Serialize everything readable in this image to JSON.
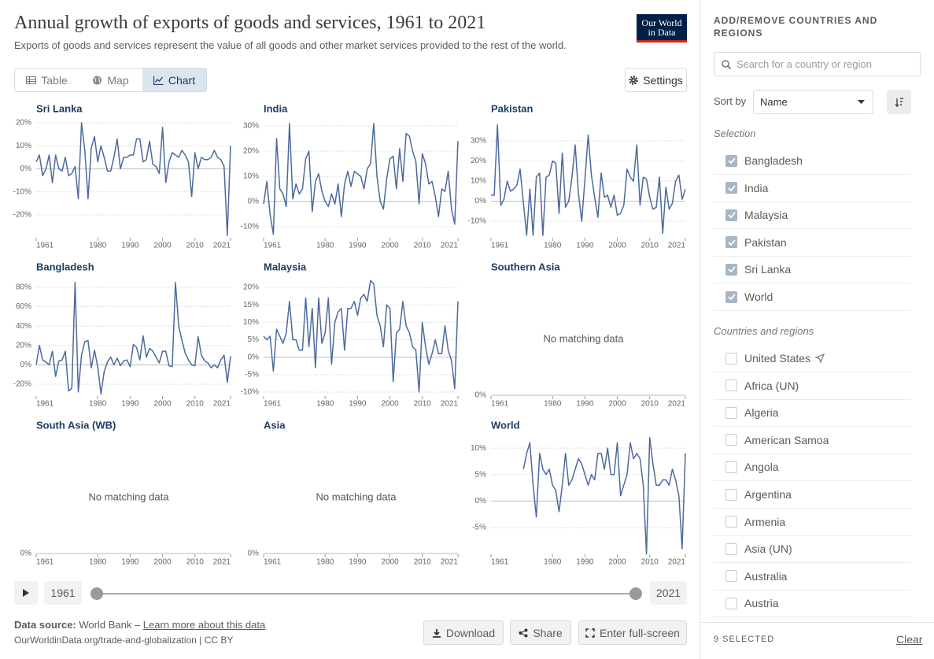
{
  "header": {
    "title": "Annual growth of exports of goods and services, 1961 to 2021",
    "subtitle": "Exports of goods and services represent the value of all goods and other market services provided to the rest of the world.",
    "logo": [
      "Our World",
      "in Data"
    ]
  },
  "tabs": [
    "Table",
    "Map",
    "Chart"
  ],
  "active_tab": 2,
  "settings": "Settings",
  "chart_data": [
    {
      "type": "line",
      "title": "Sri Lanka",
      "color": "#4c6a9c",
      "xlim": [
        1961,
        2021
      ],
      "xticks": [
        1961,
        1980,
        1990,
        2000,
        2010,
        2021
      ],
      "ylim": [
        -29.6,
        21
      ],
      "yticks": [
        {
          "value": 20,
          "label": "20%"
        },
        {
          "value": 10,
          "label": "10%"
        },
        {
          "value": 0,
          "label": "0%"
        },
        {
          "value": -10,
          "label": "-10%"
        },
        {
          "value": -20,
          "label": "-20%"
        }
      ],
      "x": [
        1961,
        1962,
        1963,
        1964,
        1965,
        1966,
        1967,
        1968,
        1969,
        1970,
        1971,
        1972,
        1973,
        1974,
        1975,
        1976,
        1977,
        1978,
        1979,
        1980,
        1981,
        1982,
        1983,
        1984,
        1985,
        1986,
        1987,
        1988,
        1989,
        1990,
        1991,
        1992,
        1993,
        1994,
        1995,
        1996,
        1997,
        1998,
        1999,
        2000,
        2001,
        2002,
        2003,
        2004,
        2005,
        2006,
        2007,
        2008,
        2009,
        2010,
        2011,
        2012,
        2013,
        2014,
        2015,
        2016,
        2017,
        2018,
        2019,
        2020,
        2021
      ],
      "values": [
        3,
        6,
        -3,
        0,
        6,
        -6,
        6,
        0,
        -1,
        5,
        -3,
        -2,
        1,
        -13,
        20,
        8,
        -13,
        9,
        14,
        3,
        10,
        5,
        -1,
        -1,
        5,
        13,
        0,
        5,
        5,
        6,
        6,
        13,
        13,
        3,
        4,
        12,
        2,
        1,
        -2,
        18,
        -6,
        3,
        7,
        6,
        5,
        8,
        6,
        3,
        -12,
        7,
        0,
        5,
        4,
        4,
        5,
        8,
        5,
        4,
        1,
        -29,
        10
      ]
    },
    {
      "type": "line",
      "title": "India",
      "color": "#4c6a9c",
      "xlim": [
        1961,
        2021
      ],
      "xticks": [
        1961,
        1980,
        1990,
        2000,
        2010,
        2021
      ],
      "ylim": [
        -14.1,
        32.2
      ],
      "yticks": [
        {
          "value": 30,
          "label": "30%"
        },
        {
          "value": 20,
          "label": "20%"
        },
        {
          "value": 10,
          "label": "10%"
        },
        {
          "value": 0,
          "label": "0%"
        },
        {
          "value": -10,
          "label": "-10%"
        }
      ],
      "x": [
        1961,
        1962,
        1963,
        1964,
        1965,
        1966,
        1967,
        1968,
        1969,
        1970,
        1971,
        1972,
        1973,
        1974,
        1975,
        1976,
        1977,
        1978,
        1979,
        1980,
        1981,
        1982,
        1983,
        1984,
        1985,
        1986,
        1987,
        1988,
        1989,
        1990,
        1991,
        1992,
        1993,
        1994,
        1995,
        1996,
        1997,
        1998,
        1999,
        2000,
        2001,
        2002,
        2003,
        2004,
        2005,
        2006,
        2007,
        2008,
        2009,
        2010,
        2011,
        2012,
        2013,
        2014,
        2015,
        2016,
        2017,
        2018,
        2019,
        2020,
        2021
      ],
      "values": [
        -1,
        8,
        -5,
        -13,
        25,
        5,
        3,
        -2,
        31,
        1,
        7,
        3,
        5,
        17,
        20,
        -4,
        8,
        11,
        4,
        0,
        -2,
        3,
        -1,
        7,
        -6,
        7,
        12,
        6,
        12,
        11,
        10,
        5,
        13,
        15,
        31,
        10,
        0,
        -3,
        9,
        17,
        18,
        5,
        21,
        8,
        27,
        26,
        20,
        16,
        -1,
        19,
        15,
        7,
        8,
        2,
        -6,
        5,
        4,
        12,
        -3,
        -9,
        24
      ]
    },
    {
      "type": "line",
      "title": "Pakistan",
      "color": "#4c6a9c",
      "xlim": [
        1961,
        2021
      ],
      "xticks": [
        1961,
        1980,
        1990,
        2000,
        2010,
        2021
      ],
      "ylim": [
        -17.8,
        40.2
      ],
      "yticks": [
        {
          "value": 30,
          "label": "30%"
        },
        {
          "value": 20,
          "label": "20%"
        },
        {
          "value": 10,
          "label": "10%"
        },
        {
          "value": 0,
          "label": "0%"
        },
        {
          "value": -10,
          "label": "-10%"
        }
      ],
      "x": [
        1961,
        1962,
        1963,
        1964,
        1965,
        1966,
        1967,
        1968,
        1969,
        1970,
        1971,
        1972,
        1973,
        1974,
        1975,
        1976,
        1977,
        1978,
        1979,
        1980,
        1981,
        1982,
        1983,
        1984,
        1985,
        1986,
        1987,
        1988,
        1989,
        1990,
        1991,
        1992,
        1993,
        1994,
        1995,
        1996,
        1997,
        1998,
        1999,
        2000,
        2001,
        2002,
        2003,
        2004,
        2005,
        2006,
        2007,
        2008,
        2009,
        2010,
        2011,
        2012,
        2013,
        2014,
        2015,
        2016,
        2017,
        2018,
        2019,
        2020,
        2021
      ],
      "values": [
        3,
        3,
        38,
        -2,
        1,
        10,
        5,
        6,
        8,
        16,
        -1,
        -17,
        6,
        -17,
        12,
        14,
        -17,
        12,
        13,
        20,
        19,
        -6,
        24,
        -3,
        0,
        12,
        28,
        4,
        -10,
        11,
        33,
        13,
        2,
        -8,
        14,
        2,
        3,
        -3,
        3,
        -7,
        -6,
        -2,
        16,
        12,
        10,
        28,
        -2,
        12,
        11,
        2,
        -4,
        -3,
        12,
        -16,
        7,
        -4,
        -1,
        10,
        13,
        1,
        6
      ]
    },
    {
      "type": "line",
      "title": "Bangladesh",
      "color": "#4c6a9c",
      "xlim": [
        1961,
        2021
      ],
      "xticks": [
        1961,
        1980,
        1990,
        2000,
        2010,
        2021
      ],
      "ylim": [
        -31.4,
        88.9
      ],
      "yticks": [
        {
          "value": 80,
          "label": "80%"
        },
        {
          "value": 60,
          "label": "60%"
        },
        {
          "value": 40,
          "label": "40%"
        },
        {
          "value": 20,
          "label": "20%"
        },
        {
          "value": 0,
          "label": "0%"
        },
        {
          "value": -20,
          "label": "-20%"
        }
      ],
      "x": [
        1961,
        1962,
        1963,
        1964,
        1965,
        1966,
        1967,
        1968,
        1969,
        1970,
        1971,
        1972,
        1973,
        1974,
        1975,
        1976,
        1977,
        1978,
        1979,
        1980,
        1981,
        1982,
        1983,
        1984,
        1985,
        1986,
        1987,
        1988,
        1989,
        1990,
        1991,
        1992,
        1993,
        1994,
        1995,
        1996,
        1997,
        1998,
        1999,
        2000,
        2001,
        2002,
        2003,
        2004,
        2005,
        2006,
        2007,
        2008,
        2009,
        2010,
        2011,
        2012,
        2013,
        2014,
        2015,
        2016,
        2017,
        2018,
        2019,
        2020,
        2021
      ],
      "values": [
        0,
        20,
        5,
        3,
        0,
        14,
        -12,
        4,
        5,
        14,
        -27,
        -24,
        85,
        -28,
        10,
        24,
        25,
        -3,
        15,
        -2,
        -30,
        -7,
        3,
        8,
        0,
        7,
        -1,
        4,
        5,
        -2,
        21,
        18,
        5,
        30,
        8,
        17,
        14,
        8,
        2,
        14,
        14,
        -1,
        -2,
        85,
        40,
        25,
        12,
        5,
        0,
        -1,
        29,
        10,
        4,
        2,
        -3,
        0,
        -3,
        5,
        10,
        -18,
        9
      ]
    },
    {
      "type": "line",
      "title": "Malaysia",
      "color": "#4c6a9c",
      "xlim": [
        1961,
        2021
      ],
      "xticks": [
        1961,
        1980,
        1990,
        2000,
        2010,
        2021
      ],
      "ylim": [
        -10.9,
        22.5
      ],
      "yticks": [
        {
          "value": 20,
          "label": "20%"
        },
        {
          "value": 15,
          "label": "15%"
        },
        {
          "value": 10,
          "label": "10%"
        },
        {
          "value": 5,
          "label": "5%"
        },
        {
          "value": 0,
          "label": "0%"
        },
        {
          "value": -5,
          "label": "-5%"
        },
        {
          "value": -10,
          "label": "-10%"
        }
      ],
      "x": [
        1961,
        1962,
        1963,
        1964,
        1965,
        1966,
        1967,
        1968,
        1969,
        1970,
        1971,
        1972,
        1973,
        1974,
        1975,
        1976,
        1977,
        1978,
        1979,
        1980,
        1981,
        1982,
        1983,
        1984,
        1985,
        1986,
        1987,
        1988,
        1989,
        1990,
        1991,
        1992,
        1993,
        1994,
        1995,
        1996,
        1997,
        1998,
        1999,
        2000,
        2001,
        2002,
        2003,
        2004,
        2005,
        2006,
        2007,
        2008,
        2009,
        2010,
        2011,
        2012,
        2013,
        2014,
        2015,
        2016,
        2017,
        2018,
        2019,
        2020,
        2021
      ],
      "values": [
        6,
        5,
        6,
        -4,
        8,
        6,
        4,
        7,
        16,
        5,
        5,
        2,
        2,
        17,
        3,
        14,
        -3,
        17,
        4,
        7,
        17,
        -2,
        10,
        13,
        14,
        2,
        14,
        14,
        16,
        12,
        17,
        18,
        16,
        22,
        21,
        12,
        9,
        3,
        15,
        14,
        -7,
        7,
        8,
        16,
        9,
        7,
        3,
        2,
        -10,
        10,
        3,
        -2,
        1,
        5,
        1,
        1,
        9,
        2,
        -1,
        -9,
        16
      ]
    },
    {
      "type": "line",
      "title": "Southern Asia",
      "xlim": [
        1961,
        2021
      ],
      "xticks": [
        1961,
        1980,
        1990,
        2000,
        2010,
        2021
      ],
      "ylim": [
        0,
        1
      ],
      "yticks": [
        {
          "value": 0,
          "label": "0%"
        }
      ],
      "message": "No matching data"
    },
    {
      "type": "line",
      "title": "South Asia (WB)",
      "xlim": [
        1961,
        2021
      ],
      "xticks": [
        1961,
        1980,
        1990,
        2000,
        2010,
        2021
      ],
      "ylim": [
        0,
        1
      ],
      "yticks": [
        {
          "value": 0,
          "label": "0%"
        }
      ],
      "message": "No matching data"
    },
    {
      "type": "line",
      "title": "Asia",
      "xlim": [
        1961,
        2021
      ],
      "xticks": [
        1961,
        1980,
        1990,
        2000,
        2010,
        2021
      ],
      "ylim": [
        0,
        1
      ],
      "yticks": [
        {
          "value": 0,
          "label": "0%"
        }
      ],
      "message": "No matching data"
    },
    {
      "type": "line",
      "title": "World",
      "color": "#4c6a9c",
      "xlim": [
        1961,
        2021
      ],
      "xticks": [
        1961,
        1980,
        1990,
        2000,
        2010,
        2021
      ],
      "ylim": [
        -9.9,
        12.1
      ],
      "yticks": [
        {
          "value": 10,
          "label": "10%"
        },
        {
          "value": 5,
          "label": "5%"
        },
        {
          "value": 0,
          "label": "0%"
        },
        {
          "value": -5,
          "label": "-5%"
        }
      ],
      "x": [
        1971,
        1972,
        1973,
        1974,
        1975,
        1976,
        1977,
        1978,
        1979,
        1980,
        1981,
        1982,
        1983,
        1984,
        1985,
        1986,
        1987,
        1988,
        1989,
        1990,
        1991,
        1992,
        1993,
        1994,
        1995,
        1996,
        1997,
        1998,
        1999,
        2000,
        2001,
        2002,
        2003,
        2004,
        2005,
        2006,
        2007,
        2008,
        2009,
        2010,
        2011,
        2012,
        2013,
        2014,
        2015,
        2016,
        2017,
        2018,
        2019,
        2020,
        2021
      ],
      "values": [
        6,
        9,
        11,
        3,
        -3,
        9,
        6,
        5,
        6,
        3,
        2,
        -2,
        3,
        9,
        3,
        4,
        6,
        8,
        7,
        5,
        3,
        5,
        4,
        9,
        9,
        6,
        10,
        5,
        5,
        11,
        1,
        3,
        5,
        11,
        8,
        9,
        8,
        3,
        -10,
        12,
        7,
        3,
        3,
        4,
        4,
        3,
        6,
        4,
        1,
        -9,
        9
      ]
    }
  ],
  "timeline": {
    "start": "1961",
    "end": "2021"
  },
  "footer": {
    "source_label": "Data source:",
    "source": "World Bank –",
    "link": "Learn more about this data",
    "url": "OurWorldinData.org/trade-and-globalization | CC BY",
    "buttons": [
      "Download",
      "Share",
      "Enter full-screen"
    ]
  },
  "sidebar": {
    "title": "ADD/REMOVE COUNTRIES AND REGIONS",
    "search": "Search for a country or region",
    "sort_label": "Sort by",
    "sort_value": "Name",
    "selection_heading": "Selection",
    "selection": [
      {
        "name": "Bangladesh",
        "checked": true
      },
      {
        "name": "India",
        "checked": true
      },
      {
        "name": "Malaysia",
        "checked": true
      },
      {
        "name": "Pakistan",
        "checked": true
      },
      {
        "name": "Sri Lanka",
        "checked": true
      },
      {
        "name": "World",
        "checked": true
      }
    ],
    "others_heading": "Countries and regions",
    "others": [
      {
        "name": "United States",
        "checked": false
      },
      {
        "name": "Africa (UN)",
        "checked": false
      },
      {
        "name": "Algeria",
        "checked": false
      },
      {
        "name": "American Samoa",
        "checked": false
      },
      {
        "name": "Angola",
        "checked": false
      },
      {
        "name": "Argentina",
        "checked": false
      },
      {
        "name": "Armenia",
        "checked": false
      },
      {
        "name": "Asia (UN)",
        "checked": false
      },
      {
        "name": "Australia",
        "checked": false
      },
      {
        "name": "Austria",
        "checked": false
      }
    ],
    "count": "9 SELECTED",
    "clear": "Clear"
  }
}
